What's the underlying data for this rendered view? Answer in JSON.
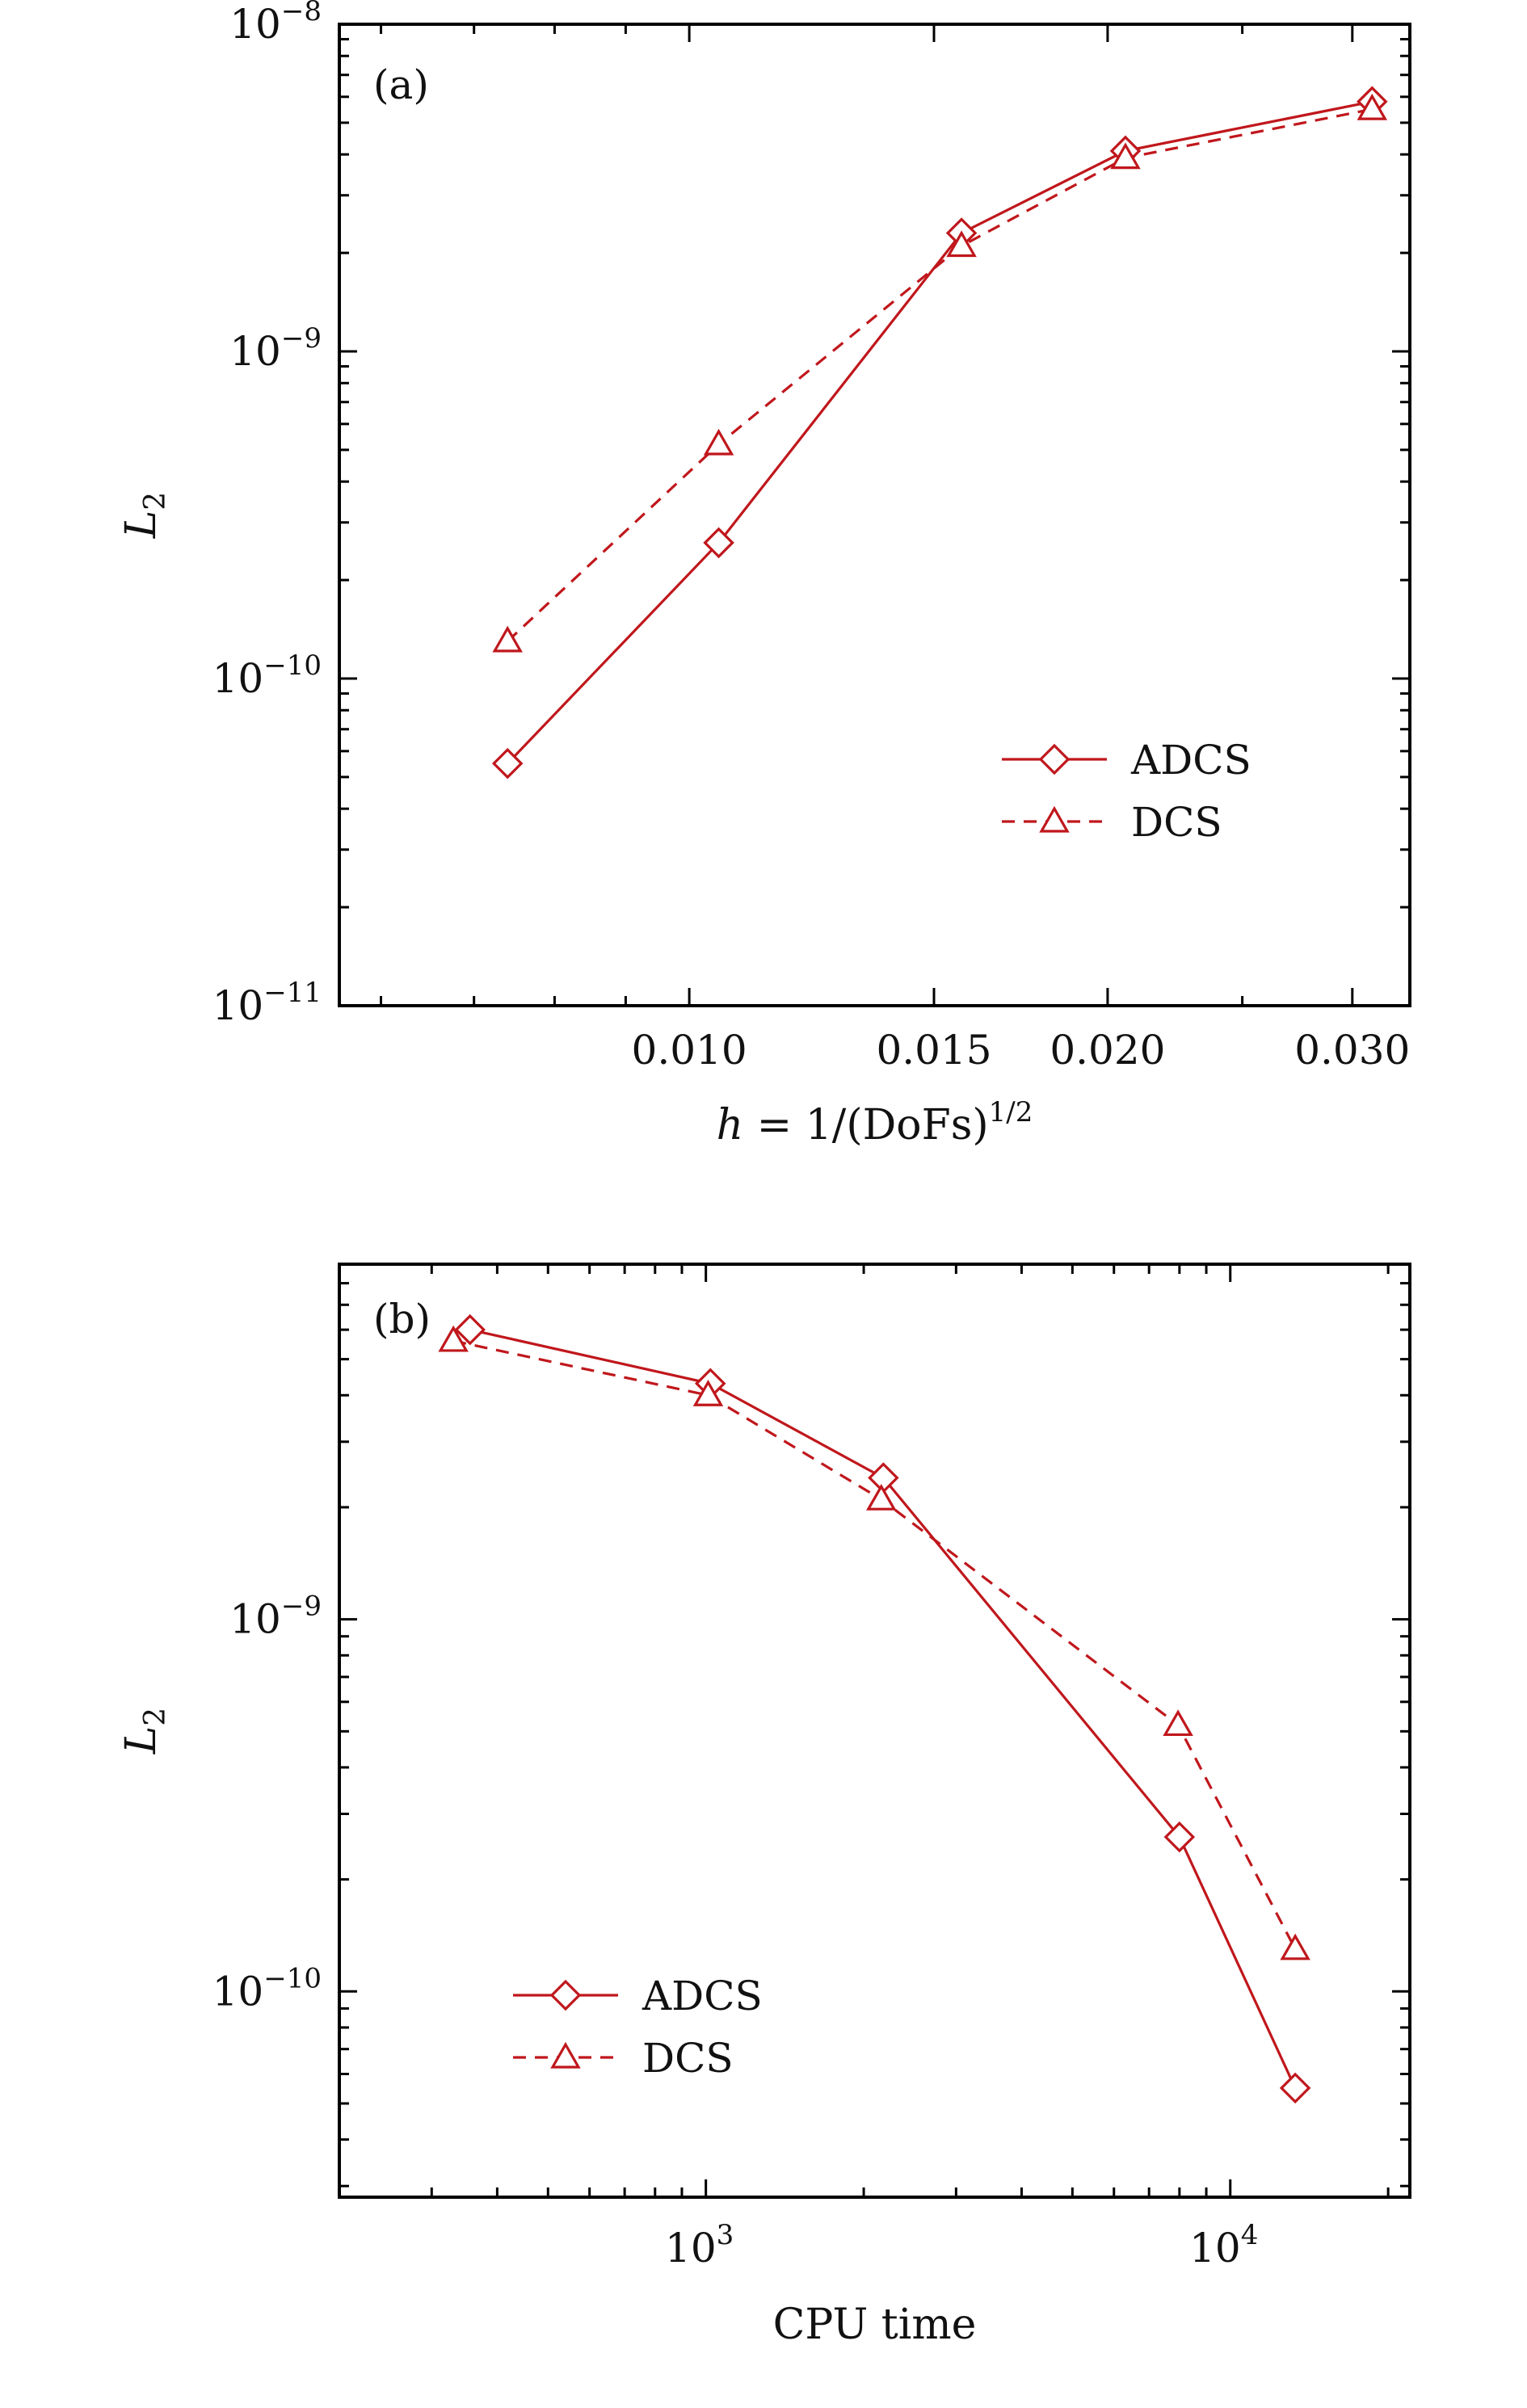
{
  "chart_data": [
    {
      "type": "line",
      "panel_label": "(a)",
      "xscale": "log",
      "yscale": "log",
      "xlim": [
        0.0056,
        0.033
      ],
      "ylim": [
        1e-11,
        1e-08
      ],
      "xlabel": {
        "italic": "h",
        "text": " = 1/(DoFs)",
        "sup": "1/2"
      },
      "ylabel": {
        "main": "L",
        "sub": "2"
      },
      "x_ticks": [
        {
          "value": 0.01,
          "label": "0.010"
        },
        {
          "value": 0.015,
          "label": "0.015"
        },
        {
          "value": 0.02,
          "label": "0.020"
        },
        {
          "value": 0.03,
          "label": "0.030"
        }
      ],
      "y_ticks": [
        {
          "value": 1e-08,
          "base": "10",
          "exp": "−8"
        },
        {
          "value": 1e-09,
          "base": "10",
          "exp": "−9"
        },
        {
          "value": 1e-10,
          "base": "10",
          "exp": "−10"
        },
        {
          "value": 1e-11,
          "base": "10",
          "exp": "−11"
        }
      ],
      "legend_position": "lower-right",
      "series": [
        {
          "name": "ADCS",
          "marker": "diamond",
          "line": "solid",
          "x": [
            0.0074,
            0.0105,
            0.0157,
            0.0206,
            0.031
          ],
          "y": [
            5.5e-11,
            2.6e-10,
            2.3e-09,
            4.1e-09,
            5.8e-09
          ]
        },
        {
          "name": "DCS",
          "marker": "triangle",
          "line": "dashed",
          "x": [
            0.0074,
            0.0105,
            0.0157,
            0.0206,
            0.031
          ],
          "y": [
            1.3e-10,
            5.2e-10,
            2.1e-09,
            3.9e-09,
            5.5e-09
          ]
        }
      ]
    },
    {
      "type": "line",
      "panel_label": "(b)",
      "xscale": "log",
      "yscale": "log",
      "xlim": [
        200,
        22000
      ],
      "ylim": [
        2.8e-11,
        9e-09
      ],
      "xlabel": {
        "italic": "",
        "text": "CPU time",
        "sup": ""
      },
      "ylabel": {
        "main": "L",
        "sub": "2"
      },
      "x_ticks": [
        {
          "value": 1000,
          "base": "10",
          "exp": "3"
        },
        {
          "value": 10000,
          "base": "10",
          "exp": "4"
        }
      ],
      "y_ticks": [
        {
          "value": 1e-09,
          "base": "10",
          "exp": "−9"
        },
        {
          "value": 1e-10,
          "base": "10",
          "exp": "−10"
        }
      ],
      "legend_position": "lower-left",
      "series": [
        {
          "name": "ADCS",
          "marker": "diamond",
          "line": "solid",
          "x": [
            355,
            1020,
            2180,
            8000,
            13300
          ],
          "y": [
            6e-09,
            4.3e-09,
            2.4e-09,
            2.6e-10,
            5.5e-11
          ]
        },
        {
          "name": "DCS",
          "marker": "triangle",
          "line": "dashed",
          "x": [
            330,
            1010,
            2160,
            7950,
            13300
          ],
          "y": [
            5.6e-09,
            4e-09,
            2.1e-09,
            5.2e-10,
            1.3e-10
          ]
        }
      ]
    }
  ],
  "colors": {
    "series": "#c0171c",
    "axis": "#000000"
  }
}
